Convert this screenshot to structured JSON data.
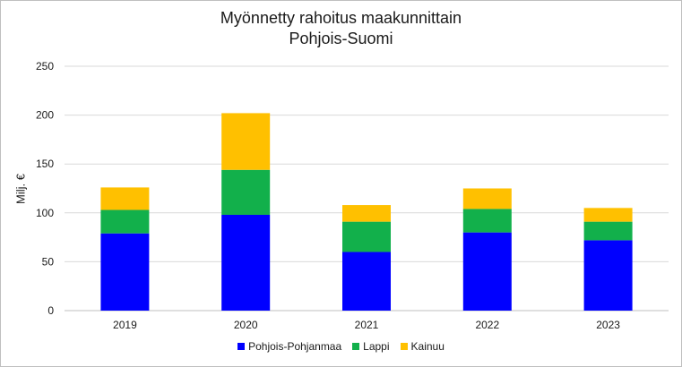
{
  "chart_data": {
    "type": "bar",
    "stacked": true,
    "title": "Myönnetty  rahoitus maakunnittain",
    "subtitle": "Pohjois-Suomi",
    "xlabel": "",
    "ylabel": "Milj. €",
    "ylim": [
      0,
      250
    ],
    "yticks": [
      0,
      50,
      100,
      150,
      200,
      250
    ],
    "grid": true,
    "legend_position": "bottom",
    "categories": [
      "2019",
      "2020",
      "2021",
      "2022",
      "2023"
    ],
    "series": [
      {
        "name": "Pohjois-Pohjanmaa",
        "color": "#0000ff",
        "values": [
          79,
          98,
          60,
          80,
          72
        ]
      },
      {
        "name": "Lappi",
        "color": "#12b04b",
        "values": [
          24,
          46,
          31,
          24,
          19
        ]
      },
      {
        "name": "Kainuu",
        "color": "#ffc000",
        "values": [
          23,
          58,
          17,
          21,
          14
        ]
      }
    ]
  }
}
